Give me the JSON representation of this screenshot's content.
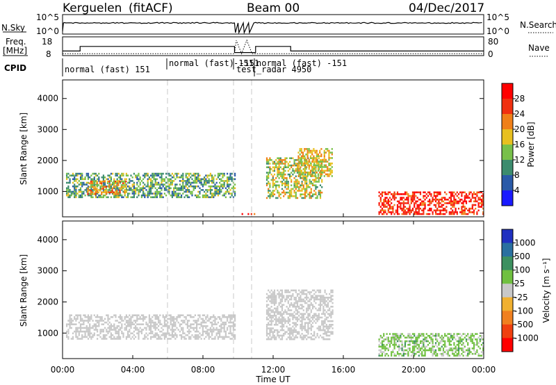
{
  "header": {
    "radar": "Kerguelen",
    "fit": "(fitACF)",
    "beam": "Beam 00",
    "date": "04/Dec/2017"
  },
  "panels": {
    "nsky": {
      "left_label": "N.Sky",
      "left_ticks": [
        "10^5",
        "10^0"
      ],
      "right_ticks": [
        "10^5",
        "10^0"
      ],
      "right_label": "N.Search"
    },
    "freq": {
      "left_label": "Freq.",
      "left_units": "[MHz]",
      "left_ticks": [
        "18",
        "8"
      ],
      "right_ticks": [
        "80",
        "0"
      ],
      "right_label": "Nave"
    },
    "cpid": {
      "label": "CPID",
      "modes": [
        "normal (fast) 151",
        "normal (fast) -151",
        "-151",
        "test_radar 4950",
        "normal (fast) -151"
      ]
    }
  },
  "x_axis": {
    "label": "Time UT",
    "ticks": [
      "00:00",
      "04:00",
      "08:00",
      "12:00",
      "16:00",
      "20:00",
      "00:00"
    ]
  },
  "colorbars": {
    "power": {
      "label": "Power [dB]",
      "ticks": [
        "4",
        "8",
        "12",
        "16",
        "20",
        "24",
        "28"
      ],
      "colors": [
        "#1a1aff",
        "#2a5aa8",
        "#3c8c6e",
        "#78c04a",
        "#e8c020",
        "#f08018",
        "#f03010",
        "#ff0000"
      ]
    },
    "velocity": {
      "label": "Velocity [m s⁻¹]",
      "ticks": [
        "1000",
        "500",
        "100",
        "25",
        "-25",
        "-100",
        "-500",
        "-1000"
      ],
      "colors": [
        "#2030c0",
        "#2a70a0",
        "#3c9060",
        "#70c040",
        "#c8c8c8",
        "#f0b030",
        "#f08020",
        "#f04010",
        "#ff0000"
      ]
    }
  },
  "chart_data": [
    {
      "type": "heatmap",
      "title": "Power",
      "xlabel": "Time UT",
      "ylabel": "Slant Range [km]",
      "xlim_hours": [
        0,
        24
      ],
      "ylim_km": [
        180,
        4600
      ],
      "y_ticks": [
        "1000",
        "2000",
        "3000",
        "4000"
      ],
      "color_scale": [
        0,
        32
      ],
      "grid": false,
      "echo_regions": [
        {
          "t_start": 0.2,
          "t_end": 9.8,
          "r_min": 800,
          "r_max": 1600,
          "level": 12
        },
        {
          "t_start": 1.4,
          "t_end": 3.6,
          "r_min": 900,
          "r_max": 1350,
          "level": 20
        },
        {
          "t_start": 11.6,
          "t_end": 14.8,
          "r_min": 800,
          "r_max": 2100,
          "level": 16
        },
        {
          "t_start": 13.4,
          "t_end": 15.4,
          "r_min": 1500,
          "r_max": 2400,
          "level": 18
        },
        {
          "t_start": 18.0,
          "t_end": 24.0,
          "r_min": 250,
          "r_max": 1000,
          "level": 28
        },
        {
          "t_start": 10.2,
          "t_end": 10.9,
          "r_min": 250,
          "r_max": 300,
          "level": 28
        }
      ],
      "gap_hours": [
        9.85,
        10.95
      ]
    },
    {
      "type": "heatmap",
      "title": "Velocity",
      "xlabel": "Time UT",
      "ylabel": "Slant Range [km]",
      "xlim_hours": [
        0,
        24
      ],
      "ylim_km": [
        180,
        4600
      ],
      "y_ticks": [
        "1000",
        "2000",
        "3000",
        "4000"
      ],
      "color_scale": [
        -1000,
        1000
      ],
      "grid": false,
      "echo_regions": [
        {
          "t_start": 0.2,
          "t_end": 9.8,
          "r_min": 800,
          "r_max": 1600,
          "level": 0
        },
        {
          "t_start": 11.6,
          "t_end": 15.4,
          "r_min": 800,
          "r_max": 2400,
          "level": 0
        },
        {
          "t_start": 18.0,
          "t_end": 24.0,
          "r_min": 250,
          "r_max": 1000,
          "level": 50
        }
      ],
      "gap_hours": [
        9.85,
        10.95
      ]
    }
  ]
}
